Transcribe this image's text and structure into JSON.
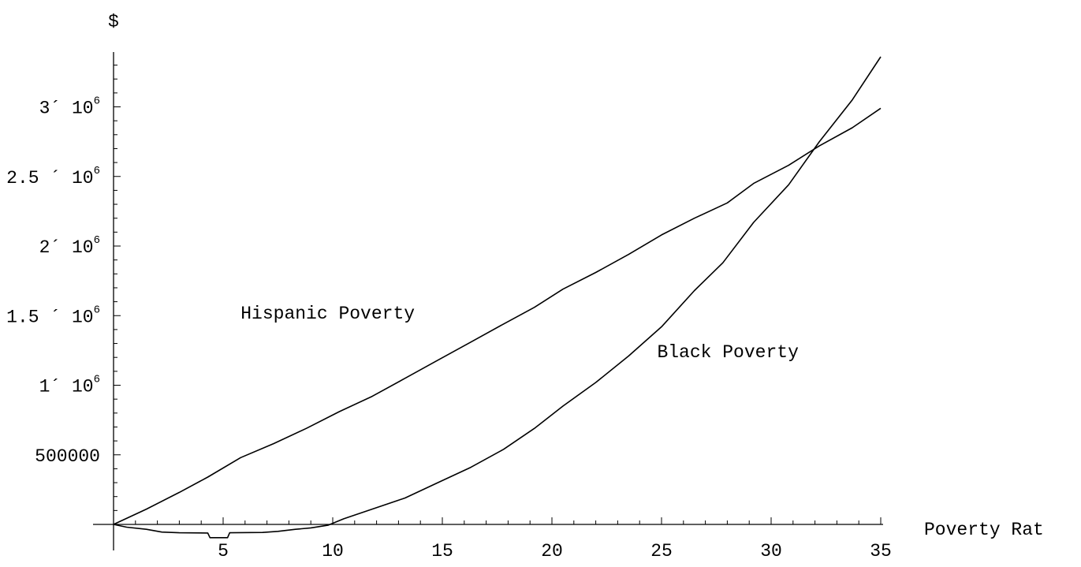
{
  "chart_data": {
    "type": "line",
    "title": "",
    "xlabel": "Poverty Rat",
    "ylabel": "$",
    "xlim": [
      0,
      35
    ],
    "ylim": [
      -60000,
      3350000
    ],
    "grid": false,
    "x_ticks": [
      5,
      10,
      15,
      20,
      25,
      30,
      35
    ],
    "x_tick_labels": [
      "5",
      "10",
      "15",
      "20",
      "25",
      "30",
      "35"
    ],
    "y_ticks": [
      {
        "value": 500000,
        "plain": "500000"
      },
      {
        "value": 1000000,
        "mantissa": "1",
        "sep": "´",
        "base": "10",
        "exp": "6"
      },
      {
        "value": 1500000,
        "mantissa": "1.5",
        "sep": " ´",
        "base": "10",
        "exp": "6"
      },
      {
        "value": 2000000,
        "mantissa": "2",
        "sep": "´",
        "base": "10",
        "exp": "6"
      },
      {
        "value": 2500000,
        "mantissa": "2.5",
        "sep": " ´",
        "base": "10",
        "exp": "6"
      },
      {
        "value": 3000000,
        "mantissa": "3",
        "sep": "´",
        "base": "10",
        "exp": "6"
      }
    ],
    "series": [
      {
        "name": "Hispanic Poverty",
        "label_anchor": {
          "x": 5.8,
          "y": 1480000
        },
        "x": [
          0,
          1.5,
          3,
          4.3,
          5.8,
          7.3,
          8.8,
          10.3,
          11.8,
          13.3,
          14.8,
          16.3,
          17.8,
          19.2,
          20.5,
          22,
          23.5,
          25,
          26.5,
          28,
          29.2,
          30.8,
          32.2,
          33.7,
          35
        ],
        "y": [
          0,
          110000,
          230000,
          340000,
          480000,
          580000,
          690000,
          810000,
          920000,
          1050000,
          1180000,
          1310000,
          1440000,
          1560000,
          1690000,
          1810000,
          1940000,
          2080000,
          2200000,
          2310000,
          2450000,
          2580000,
          2720000,
          2850000,
          2990000
        ]
      },
      {
        "name": "Black Poverty",
        "label_anchor": {
          "x": 24.8,
          "y": 1200000
        },
        "x": [
          0,
          0.6,
          1.5,
          2.2,
          3,
          4.3,
          4.4,
          5.2,
          5.3,
          6.8,
          7.5,
          8.3,
          9.0,
          9.8,
          10.5,
          11.8,
          13.3,
          14.8,
          16.3,
          17.8,
          19.2,
          20.5,
          22,
          23.5,
          25,
          26.5,
          27.8,
          29.2,
          30.8,
          32.2,
          33.7,
          35
        ],
        "y": [
          0,
          -20000,
          -35000,
          -55000,
          -60000,
          -62000,
          -95000,
          -95000,
          -60000,
          -58000,
          -50000,
          -35000,
          -25000,
          -5000,
          40000,
          110000,
          190000,
          300000,
          410000,
          540000,
          690000,
          850000,
          1020000,
          1210000,
          1420000,
          1680000,
          1880000,
          2170000,
          2440000,
          2750000,
          3050000,
          3360000
        ]
      }
    ]
  }
}
